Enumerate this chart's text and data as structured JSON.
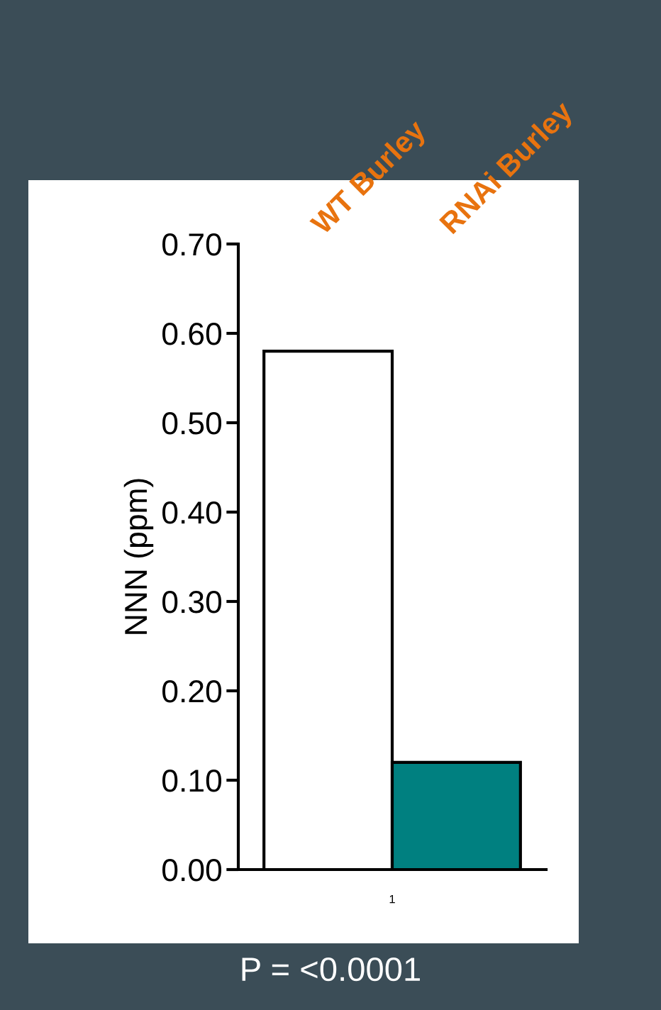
{
  "chart_data": {
    "type": "bar",
    "ylabel": "NNN (ppm)",
    "categories": [
      "WT Burley",
      "RNAi Burley"
    ],
    "values": [
      0.58,
      0.12
    ],
    "colors": [
      "#ffffff",
      "#008080"
    ],
    "ylim": [
      0,
      0.7
    ],
    "yticks": [
      {
        "value": 0,
        "label": "0.00"
      },
      {
        "value": 0.1,
        "label": "0.10"
      },
      {
        "value": 0.2,
        "label": "0.20"
      },
      {
        "value": 0.3,
        "label": "0.30"
      },
      {
        "value": 0.4,
        "label": "0.40"
      },
      {
        "value": 0.5,
        "label": "0.50"
      },
      {
        "value": 0.6,
        "label": "0.60"
      },
      {
        "value": 0.7,
        "label": "0.70"
      }
    ],
    "grid": false,
    "annotations": [
      "1",
      "P = <0.0001"
    ]
  }
}
